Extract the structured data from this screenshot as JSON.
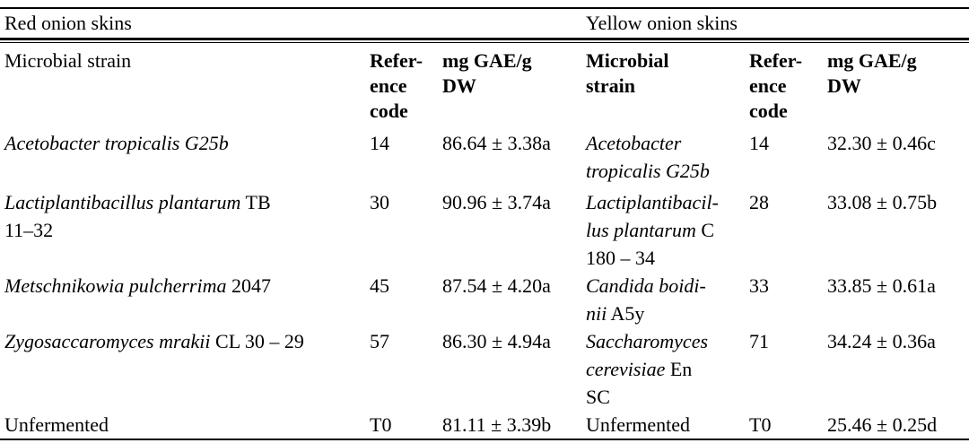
{
  "page": {
    "background": "#ffffff",
    "text_color": "#000000",
    "rule_color": "#000000"
  },
  "table": {
    "groups": [
      {
        "label": "Red onion skins"
      },
      {
        "label": "Yellow onion skins"
      }
    ],
    "header": {
      "red_strain": [
        [
          {
            "t": "Microbial strain"
          }
        ]
      ],
      "red_ref": [
        [
          {
            "t": "Refer-"
          }
        ],
        [
          {
            "t": "ence"
          }
        ],
        [
          {
            "t": "code"
          }
        ]
      ],
      "red_value": [
        [
          {
            "t": "mg GAE/g"
          }
        ],
        [
          {
            "t": "DW"
          }
        ]
      ],
      "yellow_strain": [
        [
          {
            "t": "Microbial"
          }
        ],
        [
          {
            "t": "strain"
          }
        ]
      ],
      "yellow_ref": [
        [
          {
            "t": "Refer-"
          }
        ],
        [
          {
            "t": "ence"
          }
        ],
        [
          {
            "t": "code"
          }
        ]
      ],
      "yellow_value": [
        [
          {
            "t": "mg GAE/g"
          }
        ],
        [
          {
            "t": "DW"
          }
        ]
      ]
    },
    "rows": [
      {
        "red": {
          "strain": [
            [
              {
                "t": "Acetobacter tropicalis G25b",
                "i": true
              }
            ]
          ],
          "ref": "14",
          "value": "86.64 ± 3.38a"
        },
        "yellow": {
          "strain": [
            [
              {
                "t": "Acetobacter",
                "i": true
              }
            ],
            [
              {
                "t": "tropicalis G25b",
                "i": true
              }
            ]
          ],
          "ref": "14",
          "value": "32.30 ± 0.46c"
        }
      },
      {
        "red": {
          "strain": [
            [
              {
                "t": "Lactiplantibacillus plantarum",
                "i": true
              },
              {
                "t": " TB"
              }
            ],
            [
              {
                "t": "11–32"
              }
            ]
          ],
          "ref": "30",
          "value": "90.96 ± 3.74a"
        },
        "yellow": {
          "strain": [
            [
              {
                "t": "Lactiplantibacil-",
                "i": true
              }
            ],
            [
              {
                "t": "lus plantarum",
                "i": true
              },
              {
                "t": " C"
              }
            ],
            [
              {
                "t": "180 – 34"
              }
            ]
          ],
          "ref": "28",
          "value": "33.08 ± 0.75b"
        }
      },
      {
        "red": {
          "strain": [
            [
              {
                "t": "Metschnikowia pulcherrima",
                "i": true
              },
              {
                "t": " 2047"
              }
            ]
          ],
          "ref": "45",
          "value": "87.54 ± 4.20a"
        },
        "yellow": {
          "strain": [
            [
              {
                "t": "Candida boidi-",
                "i": true
              }
            ],
            [
              {
                "t": "nii",
                "i": true
              },
              {
                "t": " A5y"
              }
            ]
          ],
          "ref": "33",
          "value": "33.85 ± 0.61a"
        }
      },
      {
        "red": {
          "strain": [
            [
              {
                "t": "Zygosaccaromyces mrakii",
                "i": true
              },
              {
                "t": " CL 30 – 29"
              }
            ]
          ],
          "ref": "57",
          "value": "86.30 ± 4.94a"
        },
        "yellow": {
          "strain": [
            [
              {
                "t": "Saccharomyces",
                "i": true
              }
            ],
            [
              {
                "t": "cerevisiae",
                "i": true
              },
              {
                "t": " En"
              }
            ],
            [
              {
                "t": "SC"
              }
            ]
          ],
          "ref": "71",
          "value": "34.24 ± 0.36a"
        }
      },
      {
        "red": {
          "strain": [
            [
              {
                "t": "Unfermented"
              }
            ]
          ],
          "ref": "T0",
          "value": "81.11 ± 3.39b"
        },
        "yellow": {
          "strain": [
            [
              {
                "t": "Unfermented"
              }
            ]
          ],
          "ref": "T0",
          "value": "25.46 ± 0.25d"
        }
      }
    ]
  }
}
